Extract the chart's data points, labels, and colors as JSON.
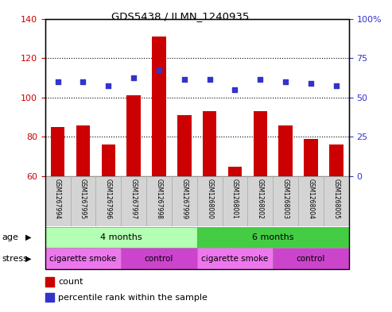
{
  "title": "GDS5438 / ILMN_1240935",
  "samples": [
    "GSM1267994",
    "GSM1267995",
    "GSM1267996",
    "GSM1267997",
    "GSM1267998",
    "GSM1267999",
    "GSM1268000",
    "GSM1268001",
    "GSM1268002",
    "GSM1268003",
    "GSM1268004",
    "GSM1268005"
  ],
  "counts": [
    85,
    86,
    76,
    101,
    131,
    91,
    93,
    65,
    93,
    86,
    79,
    76
  ],
  "percentile_ranks_pct": [
    60,
    60,
    57.5,
    62.5,
    67.5,
    61.25,
    61.25,
    55,
    61.25,
    60,
    58.75,
    57.5
  ],
  "ylim_left": [
    60,
    140
  ],
  "ylim_right": [
    0,
    100
  ],
  "yticks_left": [
    60,
    80,
    100,
    120,
    140
  ],
  "yticks_right": [
    0,
    25,
    50,
    75,
    100
  ],
  "bar_color": "#cc0000",
  "dot_color": "#3333cc",
  "age_groups": [
    {
      "label": "4 months",
      "start": 0,
      "end": 6,
      "color": "#b3ffb3"
    },
    {
      "label": "6 months",
      "start": 6,
      "end": 12,
      "color": "#44cc44"
    }
  ],
  "stress_groups": [
    {
      "label": "cigarette smoke",
      "start": 0,
      "end": 3,
      "color": "#ee77ee"
    },
    {
      "label": "control",
      "start": 3,
      "end": 6,
      "color": "#cc44cc"
    },
    {
      "label": "cigarette smoke",
      "start": 6,
      "end": 9,
      "color": "#ee77ee"
    },
    {
      "label": "control",
      "start": 9,
      "end": 12,
      "color": "#cc44cc"
    }
  ],
  "tick_label_color_left": "#cc0000",
  "tick_label_color_right": "#3333cc",
  "grid_yticks": [
    80,
    100,
    120
  ],
  "bar_bottom": 60,
  "figsize": [
    4.93,
    3.93
  ],
  "dpi": 100
}
